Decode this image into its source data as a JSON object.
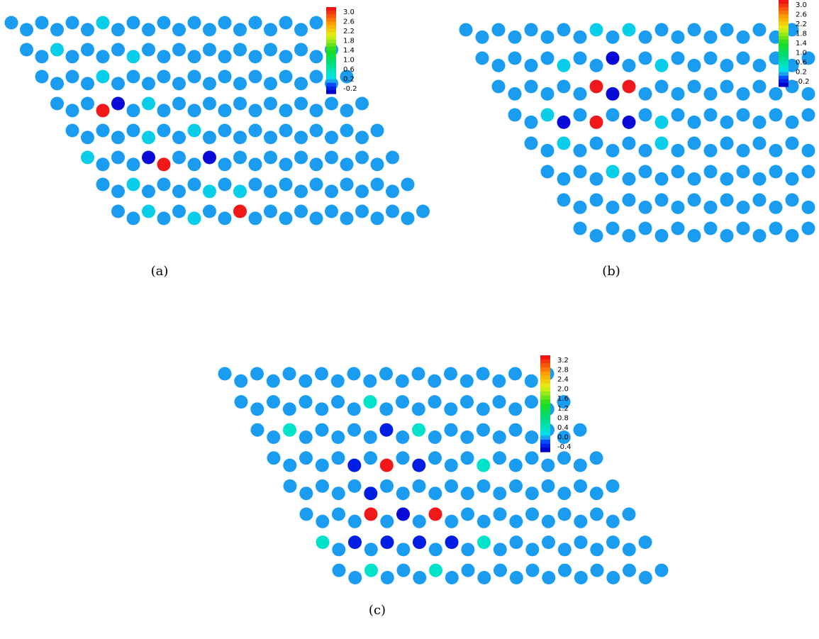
{
  "chart_data": [
    {
      "type": "scatter",
      "subplot_label": "(a)",
      "lattice": {
        "rows": 8,
        "cols": 10
      },
      "background_color": "#1a9cf0",
      "highlighted_sites": [
        {
          "row": 0,
          "col": 6,
          "value": 0.35
        },
        {
          "row": 1,
          "col": 2,
          "value": 0.35
        },
        {
          "row": 1,
          "col": 7,
          "value": 0.35
        },
        {
          "row": 2,
          "col": 4,
          "value": 0.35
        },
        {
          "row": 3,
          "col": 3,
          "value": 3.0
        },
        {
          "row": 3,
          "col": 4,
          "value": -0.2
        },
        {
          "row": 3,
          "col": 6,
          "value": 0.35
        },
        {
          "row": 4,
          "col": 5,
          "value": 0.35
        },
        {
          "row": 4,
          "col": 8,
          "value": 0.35
        },
        {
          "row": 5,
          "col": 0,
          "value": 0.35
        },
        {
          "row": 5,
          "col": 4,
          "value": -0.2
        },
        {
          "row": 5,
          "col": 5,
          "value": 3.0
        },
        {
          "row": 5,
          "col": 8,
          "value": -0.2
        },
        {
          "row": 6,
          "col": 2,
          "value": 0.35
        },
        {
          "row": 6,
          "col": 7,
          "value": 0.35
        },
        {
          "row": 6,
          "col": 9,
          "value": 0.35
        },
        {
          "row": 7,
          "col": 2,
          "value": 0.35
        },
        {
          "row": 7,
          "col": 5,
          "value": 0.35
        },
        {
          "row": 7,
          "col": 8,
          "value": 3.0
        }
      ],
      "colorbar": {
        "ticks": [
          "3.0",
          "2.6",
          "2.2",
          "1.8",
          "1.4",
          "1.0",
          "0.6",
          "0.2",
          "-0.2"
        ],
        "range": [
          -0.2,
          3.2
        ]
      }
    },
    {
      "type": "scatter",
      "subplot_label": "(b)",
      "lattice": {
        "rows": 8,
        "cols": 10
      },
      "background_color": "#1a9cf0",
      "highlighted_sites": [
        {
          "row": 0,
          "col": 8,
          "value": 0.35
        },
        {
          "row": 0,
          "col": 10,
          "value": 0.35
        },
        {
          "row": 1,
          "col": 5,
          "value": 0.35
        },
        {
          "row": 1,
          "col": 8,
          "value": -0.2
        },
        {
          "row": 1,
          "col": 11,
          "value": 0.35
        },
        {
          "row": 2,
          "col": 6,
          "value": 3.0
        },
        {
          "row": 2,
          "col": 7,
          "value": -0.2
        },
        {
          "row": 2,
          "col": 8,
          "value": 3.0
        },
        {
          "row": 3,
          "col": 2,
          "value": 0.35
        },
        {
          "row": 3,
          "col": 3,
          "value": -0.2
        },
        {
          "row": 3,
          "col": 5,
          "value": 3.0
        },
        {
          "row": 3,
          "col": 7,
          "value": -0.2
        },
        {
          "row": 3,
          "col": 9,
          "value": 0.35
        },
        {
          "row": 4,
          "col": 2,
          "value": 0.35
        },
        {
          "row": 4,
          "col": 8,
          "value": 0.35
        },
        {
          "row": 5,
          "col": 4,
          "value": 0.35
        }
      ],
      "colorbar": {
        "ticks": [
          "3.0",
          "2.6",
          "2.2",
          "1.8",
          "1.4",
          "1.0",
          "0.6",
          "0.2",
          "-0.2"
        ],
        "range": [
          -0.2,
          3.2
        ]
      }
    },
    {
      "type": "scatter",
      "subplot_label": "(c)",
      "lattice": {
        "rows": 8,
        "cols": 10
      },
      "background_color": "#1a9cf0",
      "highlighted_sites": [
        {
          "row": 1,
          "col": 8,
          "value": 0.45
        },
        {
          "row": 2,
          "col": 2,
          "value": 0.45
        },
        {
          "row": 2,
          "col": 8,
          "value": -0.25
        },
        {
          "row": 2,
          "col": 10,
          "value": 0.45
        },
        {
          "row": 3,
          "col": 5,
          "value": -0.25
        },
        {
          "row": 3,
          "col": 7,
          "value": 3.2
        },
        {
          "row": 3,
          "col": 9,
          "value": -0.25
        },
        {
          "row": 3,
          "col": 13,
          "value": 0.45
        },
        {
          "row": 4,
          "col": 5,
          "value": -0.25
        },
        {
          "row": 5,
          "col": 4,
          "value": 3.2
        },
        {
          "row": 5,
          "col": 6,
          "value": -0.4
        },
        {
          "row": 5,
          "col": 8,
          "value": 3.2
        },
        {
          "row": 6,
          "col": 0,
          "value": 0.45
        },
        {
          "row": 6,
          "col": 2,
          "value": -0.25
        },
        {
          "row": 6,
          "col": 4,
          "value": -0.25
        },
        {
          "row": 6,
          "col": 6,
          "value": -0.25
        },
        {
          "row": 6,
          "col": 8,
          "value": -0.25
        },
        {
          "row": 6,
          "col": 10,
          "value": 0.45
        },
        {
          "row": 7,
          "col": 2,
          "value": 0.45
        },
        {
          "row": 7,
          "col": 6,
          "value": 0.45
        },
        {
          "row": 8,
          "col": 2,
          "value": 0.45
        },
        {
          "row": 8,
          "col": 6,
          "value": 0.45
        }
      ],
      "colorbar": {
        "ticks": [
          "3.2",
          "2.8",
          "2.4",
          "2.0",
          "1.6",
          "1.2",
          "0.8",
          "0.4",
          "0.0",
          "-0.4"
        ],
        "range": [
          -0.4,
          3.4
        ]
      }
    }
  ]
}
